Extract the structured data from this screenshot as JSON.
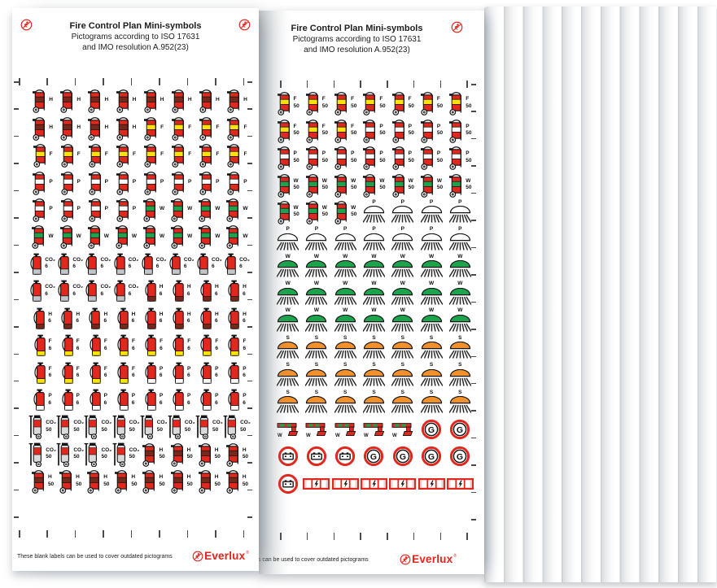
{
  "header": {
    "title": "Fire Control Plan Mini-symbols",
    "subtitle1": "Pictograms according to ISO 17631",
    "subtitle2": "and IMO resolution A.952(23)"
  },
  "footer": {
    "note": "These blank labels can be used to cover outdated pictograms",
    "brand": "Everlux",
    "registered": "®"
  },
  "colors": {
    "red": "#e2271d",
    "outline": "#141414",
    "band_H": "#76291a",
    "band_F": "#ffe20a",
    "band_P": "#ffffff",
    "band_W": "#1ea34d",
    "band_S": "#f0912d",
    "band_CO2": "#c2c6c9",
    "cylinder_gray": "#d8dadb",
    "fan_gray": "#c7cdd2"
  },
  "labels": {
    "H": "H",
    "F": "F",
    "P": "P",
    "W": "W",
    "S": "S",
    "CO2": "CO₂",
    "G": "G"
  },
  "numbers": {
    "small": "6",
    "large": "50"
  },
  "ticks": {
    "top_count": 9,
    "side_count": 17
  },
  "sheets": [
    {
      "name": "sheet-1",
      "columns": 8,
      "rows": [
        [
          [
            "wh",
            "H",
            "",
            8
          ]
        ],
        [
          [
            "wh",
            "H",
            "",
            4
          ],
          [
            "wh",
            "F",
            "",
            4
          ]
        ],
        [
          [
            "wh",
            "F",
            "",
            8
          ]
        ],
        [
          [
            "wh",
            "P",
            "",
            8
          ]
        ],
        [
          [
            "wh",
            "P",
            "",
            4
          ],
          [
            "wh",
            "W",
            "",
            4
          ]
        ],
        [
          [
            "wh",
            "W",
            "",
            8
          ]
        ],
        [
          [
            "pt",
            "CO2",
            "6",
            8
          ]
        ],
        [
          [
            "pt",
            "CO2",
            "6",
            4
          ],
          [
            "pt",
            "H",
            "6",
            4
          ]
        ],
        [
          [
            "pt",
            "H",
            "6",
            8
          ]
        ],
        [
          [
            "pt",
            "F",
            "6",
            8
          ]
        ],
        [
          [
            "pt",
            "F",
            "6",
            4
          ],
          [
            "pt",
            "P",
            "6",
            4
          ]
        ],
        [
          [
            "pt",
            "P",
            "6",
            8
          ]
        ],
        [
          [
            "tr",
            "CO2",
            "50",
            8
          ]
        ],
        [
          [
            "tr",
            "CO2",
            "50",
            4
          ],
          [
            "wh",
            "H",
            "50",
            4
          ]
        ],
        [
          [
            "wh",
            "H",
            "50",
            8
          ]
        ]
      ]
    },
    {
      "name": "sheet-2",
      "columns": 7,
      "rows": [
        [
          [
            "wh",
            "F",
            "50",
            7
          ]
        ],
        [
          [
            "wh",
            "F",
            "50",
            3
          ],
          [
            "wh",
            "P",
            "50",
            4
          ]
        ],
        [
          [
            "wh",
            "P",
            "50",
            7
          ]
        ],
        [
          [
            "wh",
            "W",
            "50",
            7
          ]
        ],
        [
          [
            "wh",
            "W",
            "50",
            3
          ],
          [
            "sp",
            "P",
            "",
            4
          ]
        ],
        [
          [
            "sp",
            "P",
            "",
            7
          ]
        ],
        [
          [
            "sp",
            "W",
            "",
            7
          ]
        ],
        [
          [
            "sp",
            "W",
            "",
            7
          ]
        ],
        [
          [
            "sp",
            "W",
            "",
            7
          ]
        ],
        [
          [
            "sp",
            "S",
            "",
            7
          ]
        ],
        [
          [
            "sp",
            "S",
            "",
            7
          ]
        ],
        [
          [
            "sp",
            "S",
            "",
            7
          ]
        ],
        [
          [
            "mo",
            "W",
            "",
            5
          ],
          [
            "gc",
            "G",
            "",
            2
          ]
        ],
        [
          [
            "bt",
            "",
            "",
            3
          ],
          [
            "gc",
            "G",
            "",
            4
          ]
        ],
        [
          [
            "bt",
            "",
            "",
            1
          ],
          [
            "ep",
            "",
            "",
            6
          ]
        ]
      ]
    }
  ]
}
